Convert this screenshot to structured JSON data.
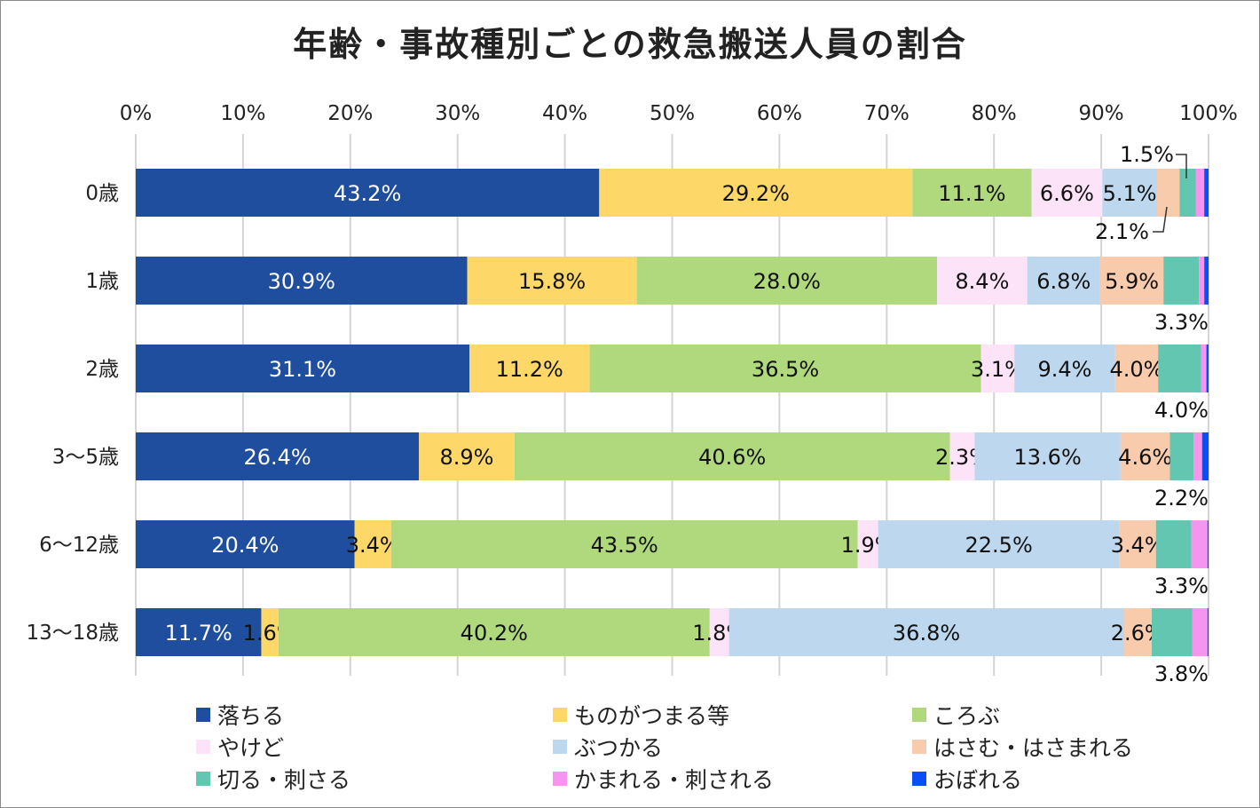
{
  "chart_data": {
    "type": "stacked-bar-horizontal",
    "title": "年齢・事故種別ごとの救急搬送人員の割合",
    "categories": [
      "0歳",
      "1歳",
      "2歳",
      "3〜5歳",
      "6〜12歳",
      "13〜18歳"
    ],
    "xlim": [
      0,
      100
    ],
    "xticks": [
      "0%",
      "10%",
      "20%",
      "30%",
      "40%",
      "50%",
      "60%",
      "70%",
      "80%",
      "90%",
      "100%"
    ],
    "grid": true,
    "legend_position": "bottom",
    "series": [
      {
        "name": "落ちる",
        "color": "#1f4e9e",
        "values": [
          43.2,
          30.9,
          31.1,
          26.4,
          20.4,
          11.7
        ],
        "labels": [
          "43.2%",
          "30.9%",
          "31.1%",
          "26.4%",
          "20.4%",
          "11.7%"
        ]
      },
      {
        "name": "ものがつまる等",
        "color": "#fdd868",
        "values": [
          29.2,
          15.8,
          11.2,
          8.9,
          3.4,
          1.6
        ],
        "labels": [
          "29.2%",
          "15.8%",
          "11.2%",
          "8.9%",
          "3.4%",
          "1.6%"
        ]
      },
      {
        "name": "ころぶ",
        "color": "#b0d97e",
        "values": [
          11.1,
          28.0,
          36.5,
          40.6,
          43.5,
          40.2
        ],
        "labels": [
          "11.1%",
          "28.0%",
          "36.5%",
          "40.6%",
          "43.5%",
          "40.2%"
        ]
      },
      {
        "name": "やけど",
        "color": "#fde3f8",
        "values": [
          6.6,
          8.4,
          3.1,
          2.3,
          1.9,
          1.8
        ],
        "labels": [
          "6.6%",
          "8.4%",
          "3.1%",
          "2.3%",
          "1.9%",
          "1.8%"
        ]
      },
      {
        "name": "ぶつかる",
        "color": "#bdd7ee",
        "values": [
          5.1,
          6.8,
          9.4,
          13.6,
          22.5,
          36.8
        ],
        "labels": [
          "5.1%",
          "6.8%",
          "9.4%",
          "13.6%",
          "22.5%",
          "36.8%"
        ]
      },
      {
        "name": "はさむ・はさまれる",
        "color": "#f8cbad",
        "values": [
          2.1,
          5.9,
          4.0,
          4.6,
          3.4,
          2.6
        ],
        "labels": [
          "2.1%",
          "5.9%",
          "4.0%",
          "4.6%",
          "3.4%",
          "2.6%"
        ]
      },
      {
        "name": "切る・刺さる",
        "color": "#62c6b0",
        "values": [
          1.5,
          3.3,
          4.0,
          2.2,
          3.3,
          3.8
        ],
        "labels": [
          "1.5%",
          "3.3%",
          "4.0%",
          "2.2%",
          "3.3%",
          "3.8%"
        ]
      },
      {
        "name": "かまれる・刺される",
        "color": "#f595f0",
        "values": [
          0.8,
          0.5,
          0.5,
          0.8,
          1.5,
          1.4
        ],
        "labels": [
          null,
          null,
          null,
          null,
          null,
          null
        ]
      },
      {
        "name": "おぼれる",
        "color": "#0a4ff5",
        "values": [
          0.4,
          0.4,
          0.2,
          0.6,
          0.1,
          0.1
        ],
        "labels": [
          null,
          null,
          null,
          null,
          null,
          null
        ]
      }
    ]
  }
}
